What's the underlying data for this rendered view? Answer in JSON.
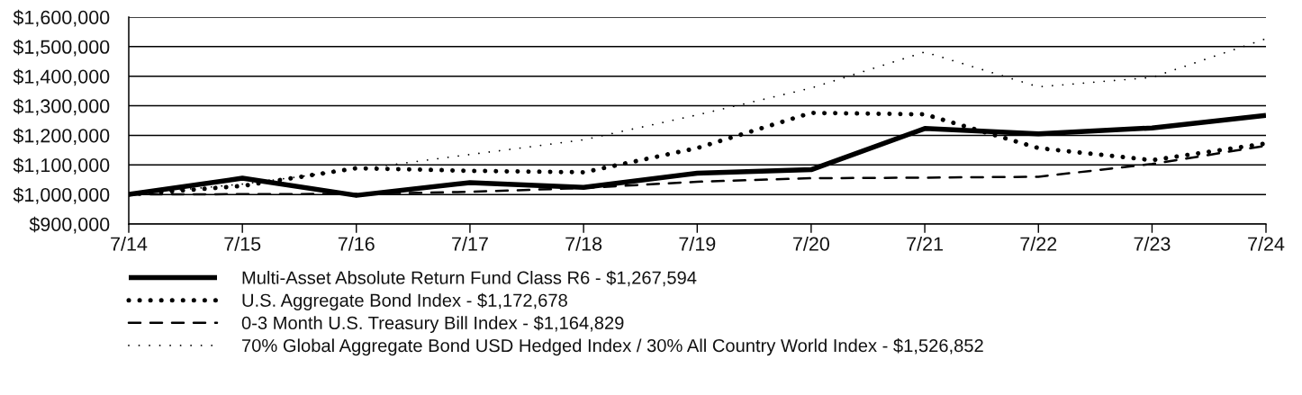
{
  "chart_data": {
    "type": "line",
    "x": [
      "2014-07",
      "2015-07",
      "2016-07",
      "2017-07",
      "2018-07",
      "2019-07",
      "2020-07",
      "2021-07",
      "2022-07",
      "2023-07",
      "2024-07"
    ],
    "series": [
      {
        "name": "Multi-Asset Absolute Return Fund Class R6 - $1,267,594",
        "color": "#000000",
        "line_style": "solid",
        "values": [
          1000000,
          1055000,
          997000,
          1040000,
          1024000,
          1072000,
          1084000,
          1223000,
          1205000,
          1225000,
          1267594
        ]
      },
      {
        "name": "U.S. Aggregate Bond Index - $1,172,678",
        "color": "#000000",
        "line_style": "dotted",
        "values": [
          1000000,
          1029000,
          1089000,
          1080000,
          1075000,
          1157000,
          1276000,
          1271000,
          1157000,
          1116000,
          1172678
        ]
      },
      {
        "name": "0-3 Month U.S. Treasury Bill Index - $1,164,829",
        "color": "#000000",
        "line_style": "dashed",
        "values": [
          1000000,
          1001000,
          1002000,
          1009000,
          1022000,
          1043000,
          1055000,
          1057000,
          1060000,
          1103000,
          1164829
        ]
      },
      {
        "name": "70% Global Aggregate Bond USD Hedged Index / 30% All Country World Index - $1,526,852",
        "color": "#000000",
        "line_style": "dotted",
        "values": [
          1000000,
          1035000,
          1085000,
          1135000,
          1185000,
          1269000,
          1360000,
          1482000,
          1364000,
          1396000,
          1526852
        ]
      }
    ],
    "xlim": [
      "2014-07",
      "2024-07"
    ],
    "xticks": [
      {
        "value": "2014-07",
        "label": "7/14"
      },
      {
        "value": "2015-07",
        "label": "7/15"
      },
      {
        "value": "2016-07",
        "label": "7/16"
      },
      {
        "value": "2017-07",
        "label": "7/17"
      },
      {
        "value": "2018-07",
        "label": "7/18"
      },
      {
        "value": "2019-07",
        "label": "7/19"
      },
      {
        "value": "2020-07",
        "label": "7/20"
      },
      {
        "value": "2021-07",
        "label": "7/21"
      },
      {
        "value": "2022-07",
        "label": "7/22"
      },
      {
        "value": "2023-07",
        "label": "7/23"
      },
      {
        "value": "2024-07",
        "label": "7/24"
      }
    ],
    "ylim": [
      900000,
      1600000
    ],
    "yticks": [
      {
        "value": 900000,
        "label": "$900,000"
      },
      {
        "value": 1000000,
        "label": "$1,000,000"
      },
      {
        "value": 1100000,
        "label": "$1,100,000"
      },
      {
        "value": 1200000,
        "label": "$1,200,000"
      },
      {
        "value": 1300000,
        "label": "$1,300,000"
      },
      {
        "value": 1400000,
        "label": "$1,400,000"
      },
      {
        "value": 1500000,
        "label": "$1,500,000"
      },
      {
        "value": 1600000,
        "label": "$1,600,000"
      }
    ],
    "grid": "y",
    "legend": "bottom"
  }
}
